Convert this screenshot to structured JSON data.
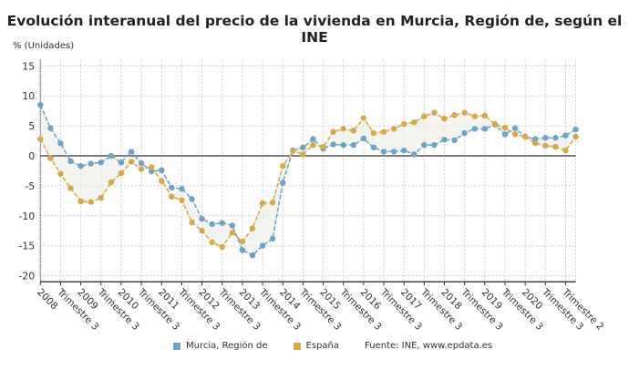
{
  "chart_data": {
    "type": "line",
    "title": "Evolución interanual del precio de la vivienda en Murcia, Región de, según el INE",
    "ylabel": "% (Unidades)",
    "xlabel": "",
    "ylim": [
      -21,
      16
    ],
    "yticks": [
      15,
      10,
      5,
      0,
      -5,
      -10,
      -15,
      -20
    ],
    "grid": true,
    "legend_position": "bottom",
    "source": "Fuente: INE, www.epdata.es",
    "x_start": "2008 T1",
    "x_end": "2021 T2",
    "x_tick_labels": [
      "2008",
      "Trimestre 3",
      "2009",
      "Trimestre 3",
      "2010",
      "Trimestre 3",
      "2011",
      "Trimestre 3",
      "2012",
      "Trimestre 3",
      "2013",
      "Trimestre 3",
      "2014",
      "Trimestre 3",
      "2015",
      "Trimestre 3",
      "2016",
      "Trimestre 3",
      "2017",
      "Trimestre 3",
      "2018",
      "Trimestre 3",
      "2019",
      "Trimestre 3",
      "2020",
      "Trimestre 3",
      "Trimestre 2"
    ],
    "series": [
      {
        "name": "Murcia, Región de",
        "color": "#6fa3c4",
        "values": [
          8.5,
          4.6,
          2.1,
          -0.9,
          -1.7,
          -1.3,
          -1.1,
          0.0,
          -1.1,
          0.7,
          -1.2,
          -2.6,
          -2.4,
          -5.3,
          -5.5,
          -7.2,
          -10.5,
          -11.4,
          -11.2,
          -11.6,
          -15.7,
          -16.6,
          -15.0,
          -13.8,
          -4.5,
          0.9,
          1.4,
          2.8,
          1.2,
          1.9,
          1.8,
          1.8,
          2.9,
          1.4,
          0.7,
          0.7,
          0.9,
          0.25,
          1.8,
          1.8,
          2.7,
          2.6,
          3.8,
          4.5,
          4.5,
          5.2,
          3.6,
          4.6,
          3.2,
          2.8,
          3.0,
          3.0,
          3.4,
          4.4
        ]
      },
      {
        "name": "España",
        "color": "#d4a84b",
        "values": [
          2.8,
          -0.4,
          -3.0,
          -5.4,
          -7.6,
          -7.7,
          -7.0,
          -4.4,
          -2.9,
          -1.0,
          -2.2,
          -1.9,
          -4.2,
          -6.8,
          -7.4,
          -11.1,
          -12.5,
          -14.4,
          -15.2,
          -12.8,
          -14.3,
          -12.1,
          -7.9,
          -7.8,
          -1.7,
          0.8,
          0.25,
          1.8,
          1.5,
          4.0,
          4.5,
          4.2,
          6.3,
          3.8,
          4.0,
          4.5,
          5.3,
          5.6,
          6.6,
          7.2,
          6.2,
          6.8,
          7.2,
          6.6,
          6.7,
          5.3,
          4.7,
          3.6,
          3.2,
          2.1,
          1.7,
          1.5,
          0.9,
          3.2
        ]
      }
    ]
  }
}
